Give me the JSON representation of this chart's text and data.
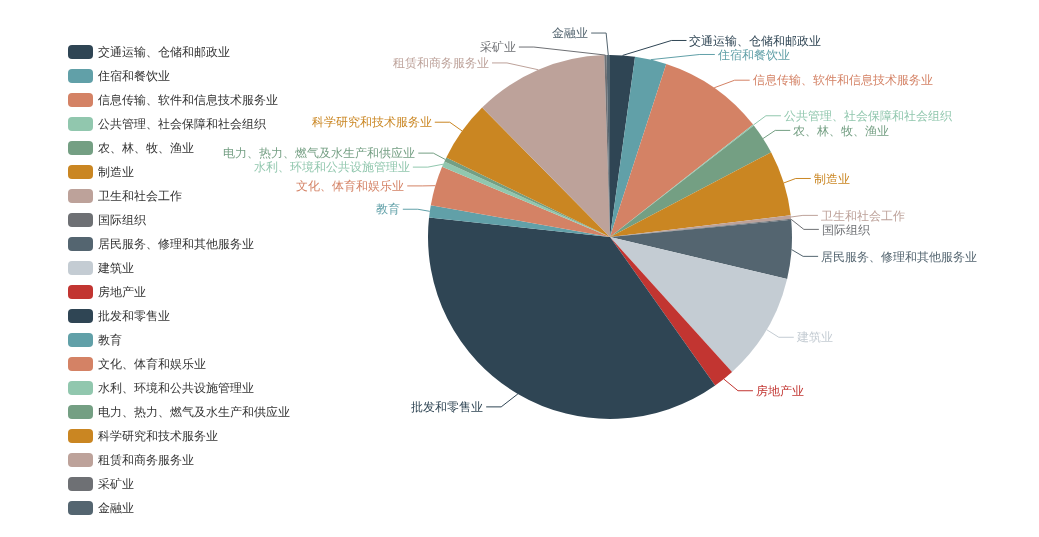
{
  "chart_data": {
    "type": "pie",
    "categories": [
      "交通运输、仓储和邮政业",
      "住宿和餐饮业",
      "信息传输、软件和信息技术服务业",
      "公共管理、社会保障和社会组织",
      "农、林、牧、渔业",
      "制造业",
      "卫生和社会工作",
      "国际组织",
      "居民服务、修理和其他服务业",
      "建筑业",
      "房地产业",
      "批发和零售业",
      "教育",
      "文化、体育和娱乐业",
      "水利、环境和公共设施管理业",
      "电力、热力、燃气及水生产和供应业",
      "科学研究和技术服务业",
      "租赁和商务服务业",
      "采矿业",
      "金融业"
    ],
    "values": [
      2.2,
      2.8,
      9.4,
      0.1,
      2.8,
      5.8,
      0.3,
      0.1,
      5.2,
      9.6,
      1.9,
      36.5,
      1.1,
      3.5,
      0.5,
      0.4,
      5.4,
      11.9,
      0.2,
      0.3
    ],
    "colors": [
      "#2f4554",
      "#61a0a8",
      "#d48265",
      "#91c7ae",
      "#749f83",
      "#ca8622",
      "#bda29a",
      "#6e7074",
      "#546570",
      "#c4ccd3",
      "#c23531",
      "#2f4554",
      "#61a0a8",
      "#d48265",
      "#91c7ae",
      "#749f83",
      "#ca8622",
      "#bda29a",
      "#6e7074",
      "#546570"
    ],
    "legend": "left"
  }
}
